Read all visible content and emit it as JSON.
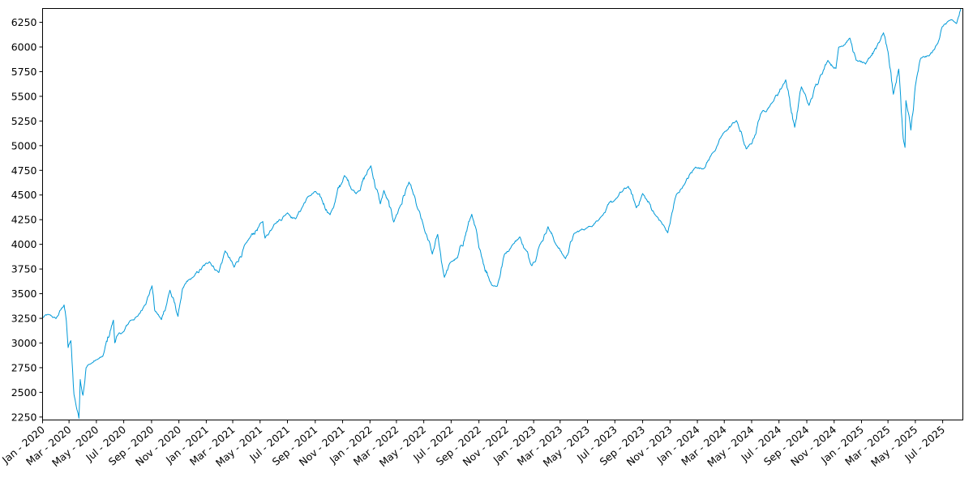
{
  "chart_data": {
    "type": "line",
    "title": "",
    "xlabel": "",
    "ylabel": "",
    "grid": false,
    "legend": "none",
    "line_color": "#0099d8",
    "x_range": [
      "2020-01-02",
      "2025-08-15"
    ],
    "ylim": [
      2220,
      6390
    ],
    "y_ticks": [
      2250,
      2500,
      2750,
      3000,
      3250,
      3500,
      3750,
      4000,
      4250,
      4500,
      4750,
      5000,
      5250,
      5500,
      5750,
      6000,
      6250
    ],
    "x_ticks": [
      {
        "date": "2020-01-01",
        "label": "Jan - 2020"
      },
      {
        "date": "2020-03-01",
        "label": "Mar - 2020"
      },
      {
        "date": "2020-05-01",
        "label": "May - 2020"
      },
      {
        "date": "2020-07-01",
        "label": "Jul - 2020"
      },
      {
        "date": "2020-09-01",
        "label": "Sep - 2020"
      },
      {
        "date": "2020-11-01",
        "label": "Nov - 2020"
      },
      {
        "date": "2021-01-01",
        "label": "Jan - 2021"
      },
      {
        "date": "2021-03-01",
        "label": "Mar - 2021"
      },
      {
        "date": "2021-05-01",
        "label": "May - 2021"
      },
      {
        "date": "2021-07-01",
        "label": "Jul - 2021"
      },
      {
        "date": "2021-09-01",
        "label": "Sep - 2021"
      },
      {
        "date": "2021-11-01",
        "label": "Nov - 2021"
      },
      {
        "date": "2022-01-01",
        "label": "Jan - 2022"
      },
      {
        "date": "2022-03-01",
        "label": "Mar - 2022"
      },
      {
        "date": "2022-05-01",
        "label": "May - 2022"
      },
      {
        "date": "2022-07-01",
        "label": "Jul - 2022"
      },
      {
        "date": "2022-09-01",
        "label": "Sep - 2022"
      },
      {
        "date": "2022-11-01",
        "label": "Nov - 2022"
      },
      {
        "date": "2023-01-01",
        "label": "Jan - 2023"
      },
      {
        "date": "2023-03-01",
        "label": "Mar - 2023"
      },
      {
        "date": "2023-05-01",
        "label": "May - 2023"
      },
      {
        "date": "2023-07-01",
        "label": "Jul - 2023"
      },
      {
        "date": "2023-09-01",
        "label": "Sep - 2023"
      },
      {
        "date": "2023-11-01",
        "label": "Nov - 2023"
      },
      {
        "date": "2024-01-01",
        "label": "Jan - 2024"
      },
      {
        "date": "2024-03-01",
        "label": "Mar - 2024"
      },
      {
        "date": "2024-05-01",
        "label": "May - 2024"
      },
      {
        "date": "2024-07-01",
        "label": "Jul - 2024"
      },
      {
        "date": "2024-09-01",
        "label": "Sep - 2024"
      },
      {
        "date": "2024-11-01",
        "label": "Nov - 2024"
      },
      {
        "date": "2025-01-01",
        "label": "Jan - 2025"
      },
      {
        "date": "2025-03-01",
        "label": "Mar - 2025"
      },
      {
        "date": "2025-05-01",
        "label": "May - 2025"
      },
      {
        "date": "2025-07-01",
        "label": "Jul - 2025"
      }
    ],
    "series": [
      {
        "x": [
          "2020-01-02",
          "2020-01-15",
          "2020-02-01",
          "2020-02-19",
          "2020-02-24",
          "2020-02-28",
          "2020-03-05",
          "2020-03-12",
          "2020-03-16",
          "2020-03-20",
          "2020-03-23",
          "2020-03-26",
          "2020-04-01",
          "2020-04-08",
          "2020-04-15",
          "2020-05-01",
          "2020-05-15",
          "2020-06-08",
          "2020-06-11",
          "2020-06-15",
          "2020-07-01",
          "2020-07-15",
          "2020-08-01",
          "2020-08-15",
          "2020-09-02",
          "2020-09-08",
          "2020-09-23",
          "2020-10-12",
          "2020-10-30",
          "2020-11-09",
          "2020-12-01",
          "2021-01-08",
          "2021-01-29",
          "2021-02-12",
          "2021-03-04",
          "2021-04-01",
          "2021-05-07",
          "2021-05-12",
          "2021-06-01",
          "2021-07-01",
          "2021-07-19",
          "2021-08-15",
          "2021-09-02",
          "2021-10-04",
          "2021-11-05",
          "2021-12-01",
          "2022-01-03",
          "2022-01-24",
          "2022-02-01",
          "2022-02-23",
          "2022-03-29",
          "2022-04-15",
          "2022-05-02",
          "2022-05-20",
          "2022-06-01",
          "2022-06-16",
          "2022-07-01",
          "2022-07-15",
          "2022-08-16",
          "2022-09-01",
          "2022-09-30",
          "2022-10-12",
          "2022-10-28",
          "2022-11-14",
          "2022-12-01",
          "2022-12-28",
          "2023-01-15",
          "2023-02-02",
          "2023-02-20",
          "2023-03-13",
          "2023-04-01",
          "2023-05-01",
          "2023-06-01",
          "2023-07-01",
          "2023-07-31",
          "2023-08-18",
          "2023-09-01",
          "2023-10-01",
          "2023-10-27",
          "2023-11-15",
          "2023-12-01",
          "2023-12-28",
          "2024-01-15",
          "2024-02-01",
          "2024-02-15",
          "2024-03-01",
          "2024-03-28",
          "2024-04-19",
          "2024-05-01",
          "2024-05-21",
          "2024-06-15",
          "2024-07-16",
          "2024-08-05",
          "2024-08-20",
          "2024-09-06",
          "2024-10-01",
          "2024-10-18",
          "2024-11-05",
          "2024-11-11",
          "2024-12-06",
          "2024-12-20",
          "2025-01-10",
          "2025-02-19",
          "2025-03-01",
          "2025-03-13",
          "2025-03-25",
          "2025-04-04",
          "2025-04-08",
          "2025-04-10",
          "2025-04-21",
          "2025-05-01",
          "2025-05-13",
          "2025-06-01",
          "2025-06-13",
          "2025-06-30",
          "2025-07-15",
          "2025-08-01",
          "2025-08-15"
        ],
        "y": [
          3257,
          3289,
          3248,
          3386,
          3225,
          2954,
          3024,
          2480,
          2386,
          2305,
          2237,
          2630,
          2470,
          2749,
          2783,
          2830,
          2863,
          3232,
          3002,
          3066,
          3115,
          3226,
          3271,
          3372,
          3580,
          3331,
          3237,
          3535,
          3270,
          3550,
          3662,
          3824,
          3714,
          3934,
          3768,
          4019,
          4232,
          4063,
          4202,
          4319,
          4258,
          4480,
          4536,
          4300,
          4697,
          4513,
          4796,
          4410,
          4546,
          4226,
          4631,
          4392,
          4155,
          3901,
          4101,
          3666,
          3825,
          3863,
          4305,
          3966,
          3585,
          3577,
          3901,
          3992,
          4076,
          3783,
          3999,
          4179,
          3997,
          3855,
          4109,
          4170,
          4283,
          4450,
          4588,
          4370,
          4515,
          4288,
          4117,
          4502,
          4595,
          4783,
          4766,
          4906,
          5005,
          5137,
          5254,
          4967,
          5018,
          5321,
          5431,
          5667,
          5186,
          5597,
          5408,
          5709,
          5864,
          5782,
          5996,
          6090,
          5867,
          5827,
          6144,
          5954,
          5521,
          5776,
          5074,
          4982,
          5457,
          5158,
          5604,
          5886,
          5911,
          5977,
          6205,
          6268,
          6238,
          6449
        ]
      }
    ]
  }
}
